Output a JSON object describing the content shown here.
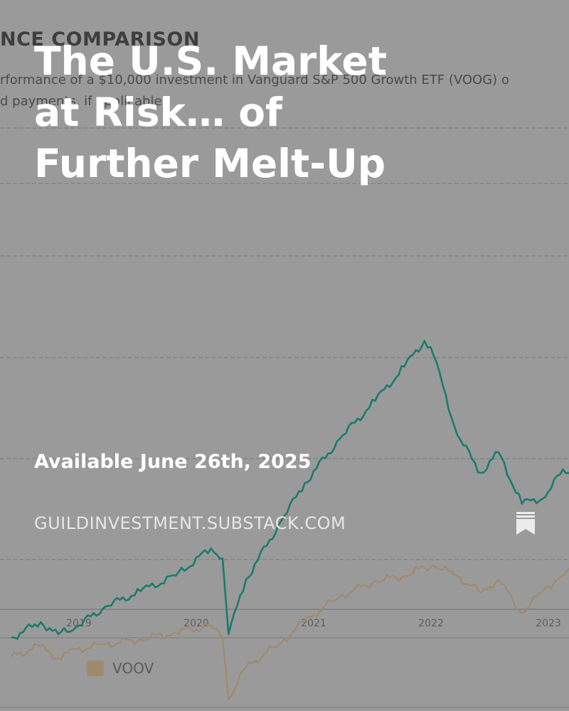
{
  "background": {
    "heading": "NCE COMPARISON",
    "subtitle_line1": "rformance of a $10,000 investment in Vanguard S&P 500 Growth ETF (VOOG) o",
    "subtitle_line2": "d payments, if applicable.",
    "legend_label": "VOOV",
    "colors": {
      "voog": "#1c7a6e",
      "voov": "#a08a6e",
      "grid": "#858585"
    },
    "chart_data": {
      "type": "line",
      "x_ticks": [
        "2019",
        "2020",
        "2021",
        "2022",
        "2023"
      ],
      "series": [
        {
          "name": "",
          "points": [
            [
              2018.4,
              10000
            ],
            [
              2018.65,
              10900
            ],
            [
              2018.8,
              10200
            ],
            [
              2018.95,
              10600
            ],
            [
              2019.2,
              11800
            ],
            [
              2019.5,
              12700
            ],
            [
              2019.8,
              13600
            ],
            [
              2020.1,
              15200
            ],
            [
              2020.2,
              14600
            ],
            [
              2020.25,
              10200
            ],
            [
              2020.4,
              13400
            ],
            [
              2020.7,
              16800
            ],
            [
              2020.9,
              19000
            ],
            [
              2021.2,
              21600
            ],
            [
              2021.5,
              23800
            ],
            [
              2021.75,
              25800
            ],
            [
              2021.92,
              27300
            ],
            [
              2022.0,
              26400
            ],
            [
              2022.2,
              21800
            ],
            [
              2022.4,
              19600
            ],
            [
              2022.55,
              20800
            ],
            [
              2022.75,
              17800
            ],
            [
              2022.95,
              18200
            ],
            [
              2023.1,
              19800
            ],
            [
              2023.3,
              19300
            ]
          ]
        },
        {
          "name": "VOOV",
          "points": [
            [
              2018.4,
              8900
            ],
            [
              2018.65,
              9500
            ],
            [
              2018.8,
              8800
            ],
            [
              2018.95,
              9300
            ],
            [
              2019.2,
              9600
            ],
            [
              2019.5,
              9900
            ],
            [
              2019.8,
              10300
            ],
            [
              2020.1,
              10700
            ],
            [
              2020.2,
              9900
            ],
            [
              2020.25,
              6400
            ],
            [
              2020.4,
              8300
            ],
            [
              2020.7,
              9700
            ],
            [
              2020.9,
              11000
            ],
            [
              2021.2,
              12400
            ],
            [
              2021.5,
              13300
            ],
            [
              2021.75,
              13600
            ],
            [
              2021.92,
              14100
            ],
            [
              2022.0,
              14200
            ],
            [
              2022.2,
              13600
            ],
            [
              2022.4,
              12600
            ],
            [
              2022.55,
              13400
            ],
            [
              2022.75,
              11400
            ],
            [
              2022.95,
              12900
            ],
            [
              2023.1,
              13600
            ],
            [
              2023.3,
              14400
            ]
          ]
        }
      ]
    }
  },
  "card": {
    "title": "The U.S. Market at Risk… of Further Melt-Up",
    "subtitle": "Available June 26th, 2025",
    "domain": "GUILDINVESTMENT.SUBSTACK.COM"
  }
}
